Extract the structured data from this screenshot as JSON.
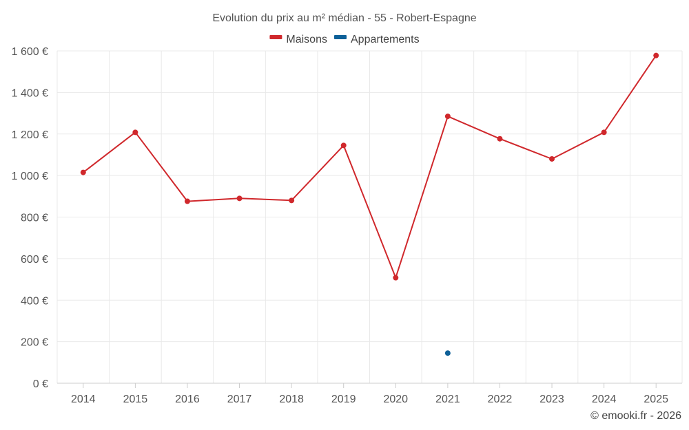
{
  "chart_data": {
    "type": "line",
    "title": "Evolution du prix au m² médian - 55 - Robert-Espagne",
    "categories": [
      "2014",
      "2015",
      "2016",
      "2017",
      "2018",
      "2019",
      "2020",
      "2021",
      "2022",
      "2023",
      "2024",
      "2025"
    ],
    "series": [
      {
        "name": "Maisons",
        "color": "#d0282c",
        "values": [
          1015,
          1208,
          876,
          890,
          880,
          1145,
          508,
          1285,
          1177,
          1080,
          1208,
          1578
        ]
      },
      {
        "name": "Appartements",
        "color": "#0e6098",
        "values": [
          null,
          null,
          null,
          null,
          null,
          null,
          null,
          145,
          null,
          null,
          null,
          null
        ]
      }
    ],
    "y_ticks": [
      "0 €",
      "200 €",
      "400 €",
      "600 €",
      "800 €",
      "1 000 €",
      "1 200 €",
      "1 400 €",
      "1 600 €"
    ],
    "ylim": [
      0,
      1600
    ],
    "grid": true,
    "legend_position": "top-center"
  },
  "credit": "© emooki.fr - 2026"
}
